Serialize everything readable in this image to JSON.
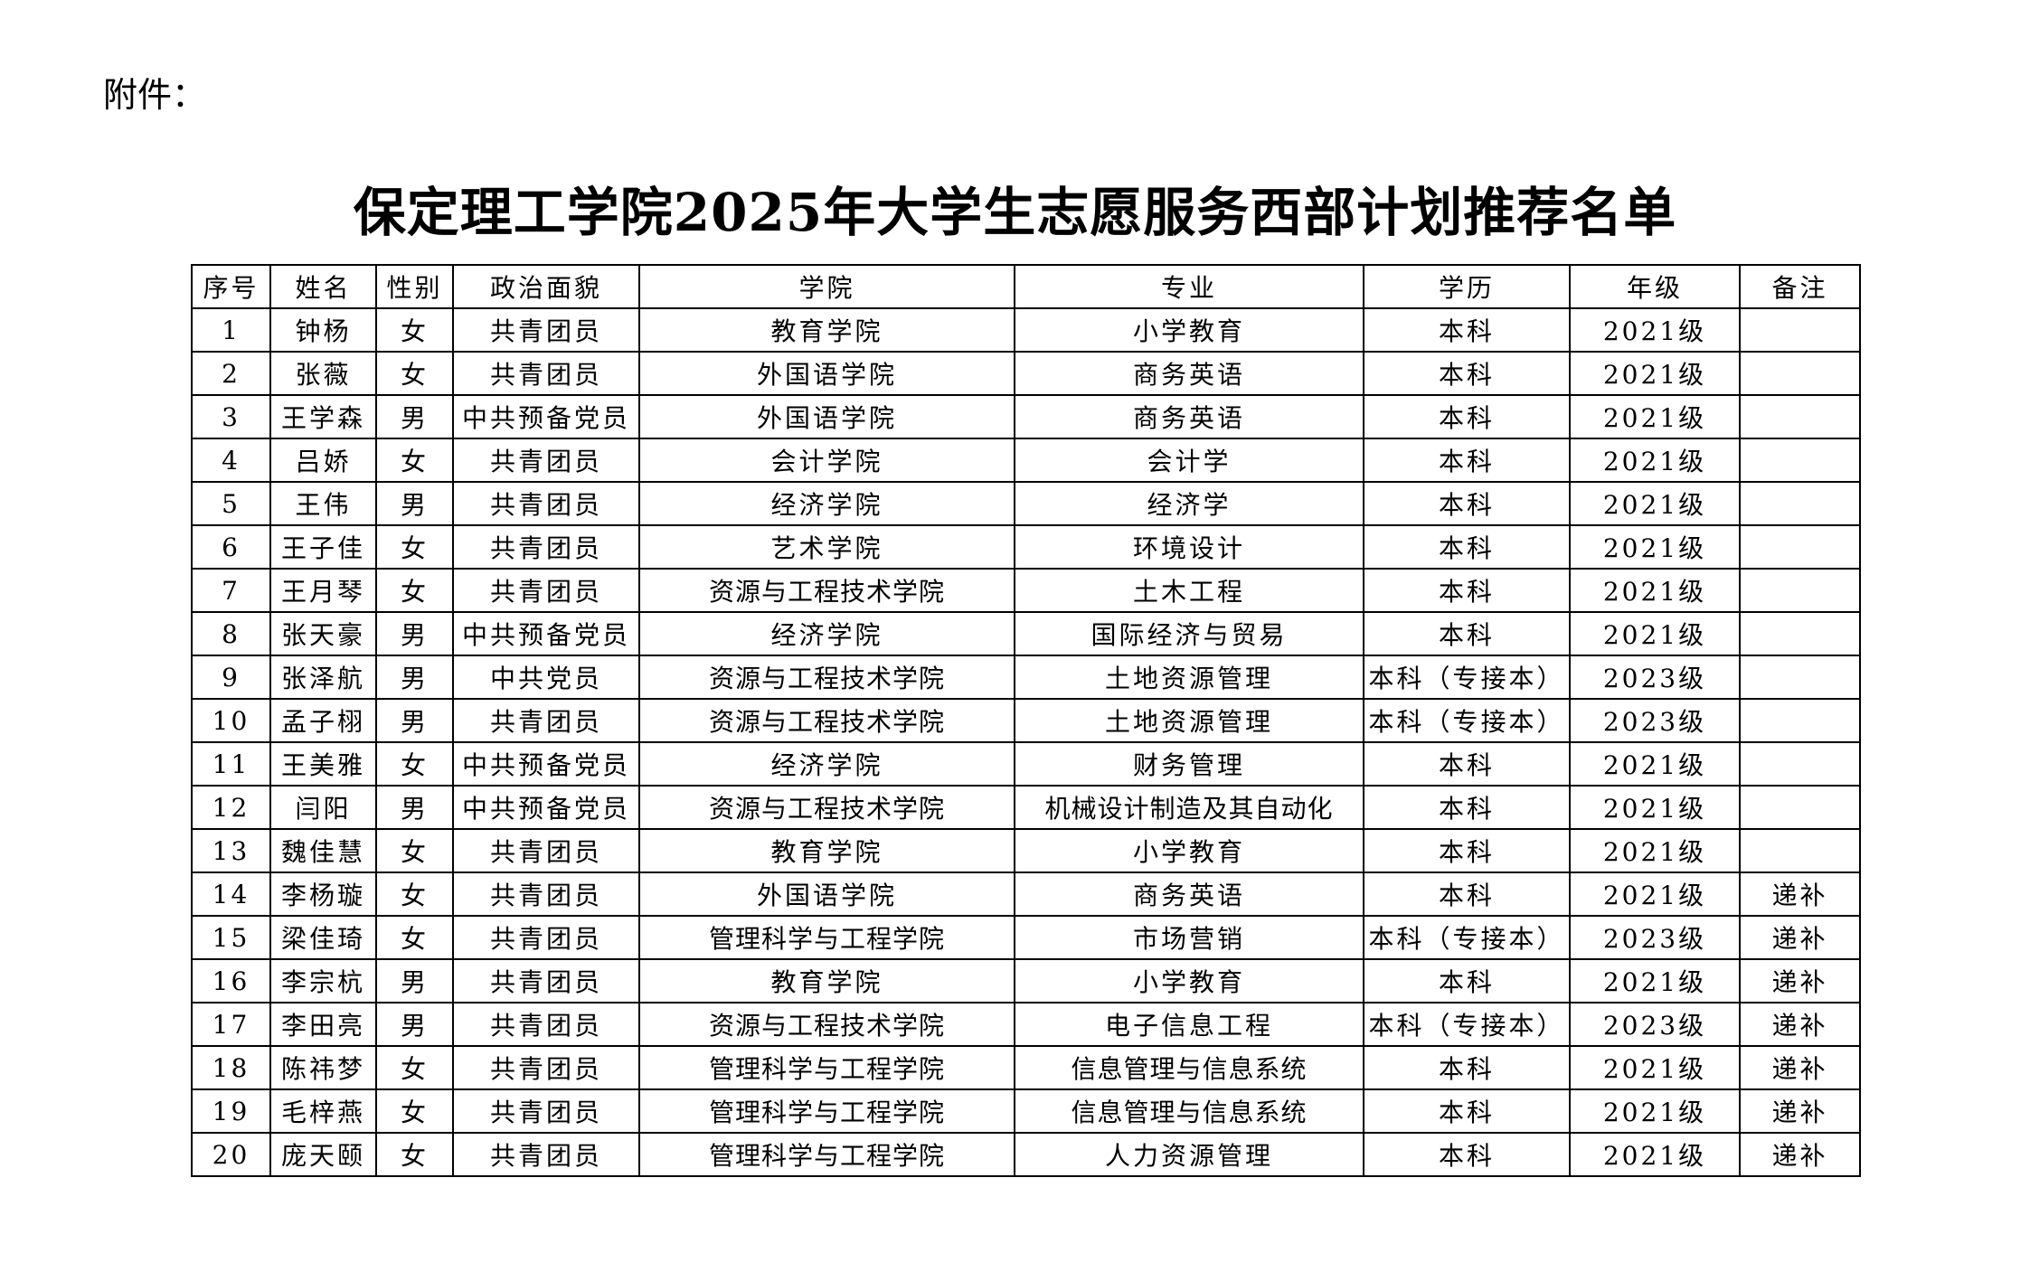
{
  "attachment_label": "附件：",
  "title": "保定理工学院2025年大学生志愿服务西部计划推荐名单",
  "table": {
    "headers": [
      "序号",
      "姓名",
      "性别",
      "政治面貌",
      "学院",
      "专业",
      "学历",
      "年级",
      "备注"
    ],
    "rows": [
      [
        "1",
        "钟杨",
        "女",
        "共青团员",
        "教育学院",
        "小学教育",
        "本科",
        "2021级",
        ""
      ],
      [
        "2",
        "张薇",
        "女",
        "共青团员",
        "外国语学院",
        "商务英语",
        "本科",
        "2021级",
        ""
      ],
      [
        "3",
        "王学森",
        "男",
        "中共预备党员",
        "外国语学院",
        "商务英语",
        "本科",
        "2021级",
        ""
      ],
      [
        "4",
        "吕娇",
        "女",
        "共青团员",
        "会计学院",
        "会计学",
        "本科",
        "2021级",
        ""
      ],
      [
        "5",
        "王伟",
        "男",
        "共青团员",
        "经济学院",
        "经济学",
        "本科",
        "2021级",
        ""
      ],
      [
        "6",
        "王子佳",
        "女",
        "共青团员",
        "艺术学院",
        "环境设计",
        "本科",
        "2021级",
        ""
      ],
      [
        "7",
        "王月琴",
        "女",
        "共青团员",
        "资源与工程技术学院",
        "土木工程",
        "本科",
        "2021级",
        ""
      ],
      [
        "8",
        "张天豪",
        "男",
        "中共预备党员",
        "经济学院",
        "国际经济与贸易",
        "本科",
        "2021级",
        ""
      ],
      [
        "9",
        "张泽航",
        "男",
        "中共党员",
        "资源与工程技术学院",
        "土地资源管理",
        "本科（专接本）",
        "2023级",
        ""
      ],
      [
        "10",
        "孟子栩",
        "男",
        "共青团员",
        "资源与工程技术学院",
        "土地资源管理",
        "本科（专接本）",
        "2023级",
        ""
      ],
      [
        "11",
        "王美雅",
        "女",
        "中共预备党员",
        "经济学院",
        "财务管理",
        "本科",
        "2021级",
        ""
      ],
      [
        "12",
        "闫阳",
        "男",
        "中共预备党员",
        "资源与工程技术学院",
        "机械设计制造及其自动化",
        "本科",
        "2021级",
        ""
      ],
      [
        "13",
        "魏佳慧",
        "女",
        "共青团员",
        "教育学院",
        "小学教育",
        "本科",
        "2021级",
        ""
      ],
      [
        "14",
        "李杨璇",
        "女",
        "共青团员",
        "外国语学院",
        "商务英语",
        "本科",
        "2021级",
        "递补"
      ],
      [
        "15",
        "梁佳琦",
        "女",
        "共青团员",
        "管理科学与工程学院",
        "市场营销",
        "本科（专接本）",
        "2023级",
        "递补"
      ],
      [
        "16",
        "李宗杭",
        "男",
        "共青团员",
        "教育学院",
        "小学教育",
        "本科",
        "2021级",
        "递补"
      ],
      [
        "17",
        "李田亮",
        "男",
        "共青团员",
        "资源与工程技术学院",
        "电子信息工程",
        "本科（专接本）",
        "2023级",
        "递补"
      ],
      [
        "18",
        "陈祎梦",
        "女",
        "共青团员",
        "管理科学与工程学院",
        "信息管理与信息系统",
        "本科",
        "2021级",
        "递补"
      ],
      [
        "19",
        "毛梓燕",
        "女",
        "共青团员",
        "管理科学与工程学院",
        "信息管理与信息系统",
        "本科",
        "2021级",
        "递补"
      ],
      [
        "20",
        "庞天颐",
        "女",
        "共青团员",
        "管理科学与工程学院",
        "人力资源管理",
        "本科",
        "2021级",
        "递补"
      ]
    ]
  }
}
